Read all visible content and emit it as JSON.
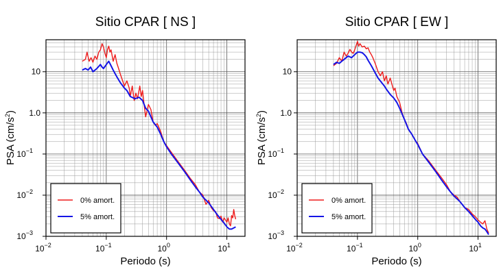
{
  "chart_data": [
    {
      "type": "line",
      "title": "Sitio CPAR [ NS ]",
      "xlabel": "Periodo (s)",
      "ylabel": "PSA (cm/s²)",
      "xscale": "log",
      "yscale": "log",
      "xlim": [
        0.01,
        20
      ],
      "ylim": [
        0.001,
        60
      ],
      "grid": true,
      "legend_position": "bottom-left",
      "xticks": [
        {
          "base": "10",
          "exp": "−2"
        },
        {
          "base": "10",
          "exp": "−1"
        },
        {
          "base": "10",
          "exp": "0"
        },
        {
          "base": "10",
          "exp": "1"
        }
      ],
      "yticks": [
        {
          "text": "10",
          "exp": "−3",
          "pos": "0.001"
        },
        {
          "text": "10",
          "exp": "−2",
          "pos": "0.01"
        },
        {
          "text": "10",
          "exp": "−1",
          "pos": "0.1"
        },
        {
          "text": "1.0",
          "exp": "",
          "pos": "1"
        },
        {
          "text": "10",
          "exp": "",
          "pos": "10"
        }
      ],
      "series": [
        {
          "name": "0% amort.",
          "color": "#ee1c1c",
          "points": [
            [
              0.04,
              18
            ],
            [
              0.045,
              20
            ],
            [
              0.048,
              30
            ],
            [
              0.052,
              18
            ],
            [
              0.056,
              22
            ],
            [
              0.06,
              17
            ],
            [
              0.065,
              24
            ],
            [
              0.07,
              20
            ],
            [
              0.075,
              30
            ],
            [
              0.08,
              34
            ],
            [
              0.085,
              48
            ],
            [
              0.09,
              40
            ],
            [
              0.095,
              28
            ],
            [
              0.1,
              22
            ],
            [
              0.105,
              35
            ],
            [
              0.11,
              42
            ],
            [
              0.115,
              30
            ],
            [
              0.12,
              34
            ],
            [
              0.13,
              18
            ],
            [
              0.14,
              26
            ],
            [
              0.15,
              16
            ],
            [
              0.16,
              12
            ],
            [
              0.17,
              9
            ],
            [
              0.18,
              7
            ],
            [
              0.2,
              4.5
            ],
            [
              0.22,
              6
            ],
            [
              0.24,
              4
            ],
            [
              0.25,
              2.5
            ],
            [
              0.27,
              4.5
            ],
            [
              0.29,
              2
            ],
            [
              0.31,
              3
            ],
            [
              0.33,
              2.2
            ],
            [
              0.36,
              4.5
            ],
            [
              0.38,
              2.5
            ],
            [
              0.4,
              3.5
            ],
            [
              0.42,
              1.8
            ],
            [
              0.45,
              0.8
            ],
            [
              0.5,
              1.6
            ],
            [
              0.55,
              1.2
            ],
            [
              0.6,
              0.6
            ],
            [
              0.65,
              0.5
            ],
            [
              0.7,
              0.55
            ],
            [
              0.8,
              0.35
            ],
            [
              0.9,
              0.2
            ],
            [
              1,
              0.16
            ],
            [
              1.2,
              0.11
            ],
            [
              1.5,
              0.07
            ],
            [
              2,
              0.04
            ],
            [
              2.5,
              0.025
            ],
            [
              3,
              0.018
            ],
            [
              3.5,
              0.012
            ],
            [
              4,
              0.01
            ],
            [
              4.5,
              0.006
            ],
            [
              5,
              0.0075
            ],
            [
              5.5,
              0.005
            ],
            [
              6,
              0.0042
            ],
            [
              6.5,
              0.004
            ],
            [
              7,
              0.0028
            ],
            [
              7.5,
              0.0027
            ],
            [
              8,
              0.0031
            ],
            [
              8.5,
              0.0022
            ],
            [
              9,
              0.0028
            ],
            [
              9.5,
              0.0025
            ],
            [
              10,
              0.0022
            ],
            [
              10.5,
              0.0028
            ],
            [
              11,
              0.002
            ],
            [
              11.5,
              0.0018
            ],
            [
              12,
              0.0032
            ],
            [
              12.5,
              0.0028
            ],
            [
              13,
              0.0045
            ],
            [
              13.5,
              0.0032
            ],
            [
              14,
              0.0026
            ]
          ]
        },
        {
          "name": "5% amort.",
          "color": "#1414e6",
          "points": [
            [
              0.04,
              11
            ],
            [
              0.045,
              12
            ],
            [
              0.05,
              11
            ],
            [
              0.055,
              13
            ],
            [
              0.06,
              10
            ],
            [
              0.065,
              11
            ],
            [
              0.07,
              12
            ],
            [
              0.08,
              15
            ],
            [
              0.085,
              13
            ],
            [
              0.09,
              12
            ],
            [
              0.1,
              15
            ],
            [
              0.11,
              18
            ],
            [
              0.12,
              14
            ],
            [
              0.13,
              11
            ],
            [
              0.14,
              9
            ],
            [
              0.15,
              7.5
            ],
            [
              0.17,
              5.5
            ],
            [
              0.2,
              4
            ],
            [
              0.22,
              3.5
            ],
            [
              0.25,
              2.5
            ],
            [
              0.3,
              2.2
            ],
            [
              0.35,
              2.4
            ],
            [
              0.4,
              2
            ],
            [
              0.45,
              1.3
            ],
            [
              0.5,
              1.1
            ],
            [
              0.6,
              0.6
            ],
            [
              0.7,
              0.45
            ],
            [
              0.8,
              0.3
            ],
            [
              0.9,
              0.2
            ],
            [
              1,
              0.15
            ],
            [
              1.2,
              0.1
            ],
            [
              1.5,
              0.065
            ],
            [
              2,
              0.037
            ],
            [
              2.5,
              0.023
            ],
            [
              3,
              0.016
            ],
            [
              3.5,
              0.012
            ],
            [
              4,
              0.009
            ],
            [
              5,
              0.0065
            ],
            [
              6,
              0.0045
            ],
            [
              7,
              0.0033
            ],
            [
              8,
              0.0026
            ],
            [
              9,
              0.0021
            ],
            [
              10,
              0.0017
            ],
            [
              11,
              0.0015
            ],
            [
              12,
              0.0015
            ],
            [
              13,
              0.0016
            ],
            [
              14,
              0.0017
            ]
          ]
        }
      ]
    },
    {
      "type": "line",
      "title": "Sitio CPAR [ EW ]",
      "xlabel": "Periodo (s)",
      "ylabel": "PSA (cm/s²)",
      "xscale": "log",
      "yscale": "log",
      "xlim": [
        0.01,
        20
      ],
      "ylim": [
        0.001,
        60
      ],
      "grid": true,
      "legend_position": "bottom-left",
      "xticks": [
        {
          "base": "10",
          "exp": "−2"
        },
        {
          "base": "10",
          "exp": "−1"
        },
        {
          "base": "10",
          "exp": "0"
        },
        {
          "base": "10",
          "exp": "1"
        }
      ],
      "yticks": [
        {
          "text": "10",
          "exp": "−3",
          "pos": "0.001"
        },
        {
          "text": "10",
          "exp": "−2",
          "pos": "0.01"
        },
        {
          "text": "10",
          "exp": "−1",
          "pos": "0.1"
        },
        {
          "text": "1.0",
          "exp": "",
          "pos": "1"
        },
        {
          "text": "10",
          "exp": "",
          "pos": "10"
        }
      ],
      "series": [
        {
          "name": "0% amort.",
          "color": "#ee1c1c",
          "points": [
            [
              0.04,
              14
            ],
            [
              0.045,
              16
            ],
            [
              0.05,
              22
            ],
            [
              0.055,
              18
            ],
            [
              0.06,
              30
            ],
            [
              0.065,
              24
            ],
            [
              0.07,
              28
            ],
            [
              0.075,
              35
            ],
            [
              0.08,
              30
            ],
            [
              0.085,
              28
            ],
            [
              0.09,
              34
            ],
            [
              0.1,
              55
            ],
            [
              0.105,
              42
            ],
            [
              0.11,
              48
            ],
            [
              0.12,
              40
            ],
            [
              0.13,
              42
            ],
            [
              0.14,
              36
            ],
            [
              0.15,
              38
            ],
            [
              0.16,
              30
            ],
            [
              0.17,
              26
            ],
            [
              0.18,
              22
            ],
            [
              0.2,
              15
            ],
            [
              0.22,
              10
            ],
            [
              0.24,
              8
            ],
            [
              0.26,
              10
            ],
            [
              0.28,
              6
            ],
            [
              0.3,
              8
            ],
            [
              0.32,
              5
            ],
            [
              0.35,
              7
            ],
            [
              0.38,
              4.5
            ],
            [
              0.4,
              3.5
            ],
            [
              0.42,
              4
            ],
            [
              0.45,
              2.5
            ],
            [
              0.5,
              1.8
            ],
            [
              0.55,
              1
            ],
            [
              0.6,
              0.7
            ],
            [
              0.65,
              0.55
            ],
            [
              0.7,
              0.4
            ],
            [
              0.8,
              0.3
            ],
            [
              0.9,
              0.22
            ],
            [
              1,
              0.18
            ],
            [
              1.2,
              0.1
            ],
            [
              1.5,
              0.07
            ],
            [
              2,
              0.04
            ],
            [
              2.5,
              0.026
            ],
            [
              3,
              0.018
            ],
            [
              3.5,
              0.012
            ],
            [
              4,
              0.01
            ],
            [
              4.5,
              0.009
            ],
            [
              5,
              0.007
            ],
            [
              6,
              0.005
            ],
            [
              7,
              0.0045
            ],
            [
              8,
              0.0035
            ],
            [
              9,
              0.003
            ],
            [
              10,
              0.0025
            ],
            [
              11,
              0.0022
            ],
            [
              12,
              0.002
            ],
            [
              13,
              0.0024
            ],
            [
              14,
              0.0015
            ],
            [
              15,
              0.0012
            ]
          ]
        },
        {
          "name": "5% amort.",
          "color": "#1414e6",
          "points": [
            [
              0.04,
              15
            ],
            [
              0.045,
              17
            ],
            [
              0.05,
              16
            ],
            [
              0.055,
              18
            ],
            [
              0.06,
              20
            ],
            [
              0.065,
              22
            ],
            [
              0.07,
              24
            ],
            [
              0.08,
              22
            ],
            [
              0.09,
              26
            ],
            [
              0.1,
              30
            ],
            [
              0.11,
              30
            ],
            [
              0.12,
              29
            ],
            [
              0.13,
              26
            ],
            [
              0.14,
              23
            ],
            [
              0.15,
              19
            ],
            [
              0.17,
              14
            ],
            [
              0.2,
              9
            ],
            [
              0.22,
              7
            ],
            [
              0.25,
              5.5
            ],
            [
              0.28,
              4.5
            ],
            [
              0.3,
              3.8
            ],
            [
              0.35,
              2.8
            ],
            [
              0.4,
              2.3
            ],
            [
              0.45,
              1.8
            ],
            [
              0.5,
              1.3
            ],
            [
              0.6,
              0.7
            ],
            [
              0.7,
              0.4
            ],
            [
              0.8,
              0.3
            ],
            [
              0.9,
              0.22
            ],
            [
              1,
              0.17
            ],
            [
              1.2,
              0.1
            ],
            [
              1.5,
              0.065
            ],
            [
              2,
              0.037
            ],
            [
              2.5,
              0.023
            ],
            [
              3,
              0.016
            ],
            [
              3.5,
              0.012
            ],
            [
              4,
              0.0095
            ],
            [
              5,
              0.007
            ],
            [
              6,
              0.005
            ],
            [
              7,
              0.004
            ],
            [
              8,
              0.0032
            ],
            [
              9,
              0.0026
            ],
            [
              10,
              0.0022
            ],
            [
              11,
              0.0018
            ],
            [
              12,
              0.0016
            ],
            [
              13,
              0.0015
            ],
            [
              14,
              0.0013
            ],
            [
              15,
              0.0011
            ]
          ]
        }
      ]
    }
  ]
}
